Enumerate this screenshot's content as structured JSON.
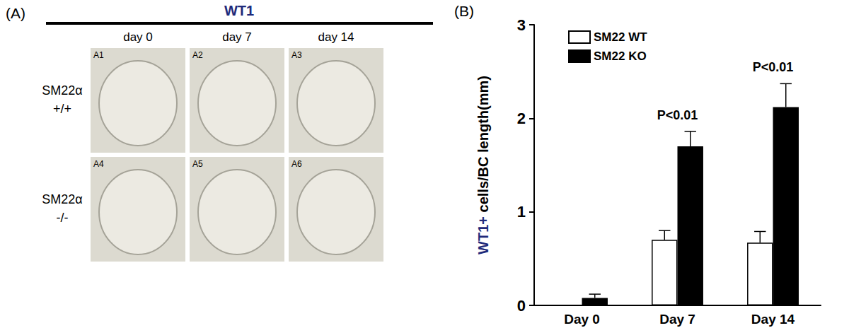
{
  "figure": {
    "panel_a": {
      "label": "(A)",
      "title": "WT1",
      "columns": [
        "day 0",
        "day 7",
        "day 14"
      ],
      "rows": [
        [
          "SM22α",
          "+/+"
        ],
        [
          "SM22α",
          "-/-"
        ]
      ],
      "panels": [
        "A1",
        "A2",
        "A3",
        "A4",
        "A5",
        "A6"
      ]
    },
    "panel_b_label": "(B)"
  },
  "chart_data": {
    "type": "bar",
    "categories": [
      "Day 0",
      "Day 7",
      "Day 14"
    ],
    "series": [
      {
        "name": "SM22 WT",
        "color": "#ffffff",
        "values": [
          0,
          0.7,
          0.67
        ],
        "errors": [
          0,
          0.1,
          0.12
        ]
      },
      {
        "name": "SM22 KO",
        "color": "#000000",
        "values": [
          0.08,
          1.7,
          2.12
        ],
        "errors": [
          0.04,
          0.16,
          0.25
        ]
      }
    ],
    "y_label": "WT1+ cells/BC length(mm)",
    "ylim": [
      0,
      3
    ],
    "yticks": [
      0,
      1,
      2,
      3
    ],
    "grid": false,
    "legend": "upper left",
    "annotations": [
      {
        "category": "Day 7",
        "text": "P<0.01"
      },
      {
        "category": "Day 14",
        "text": "P<0.01"
      }
    ]
  }
}
